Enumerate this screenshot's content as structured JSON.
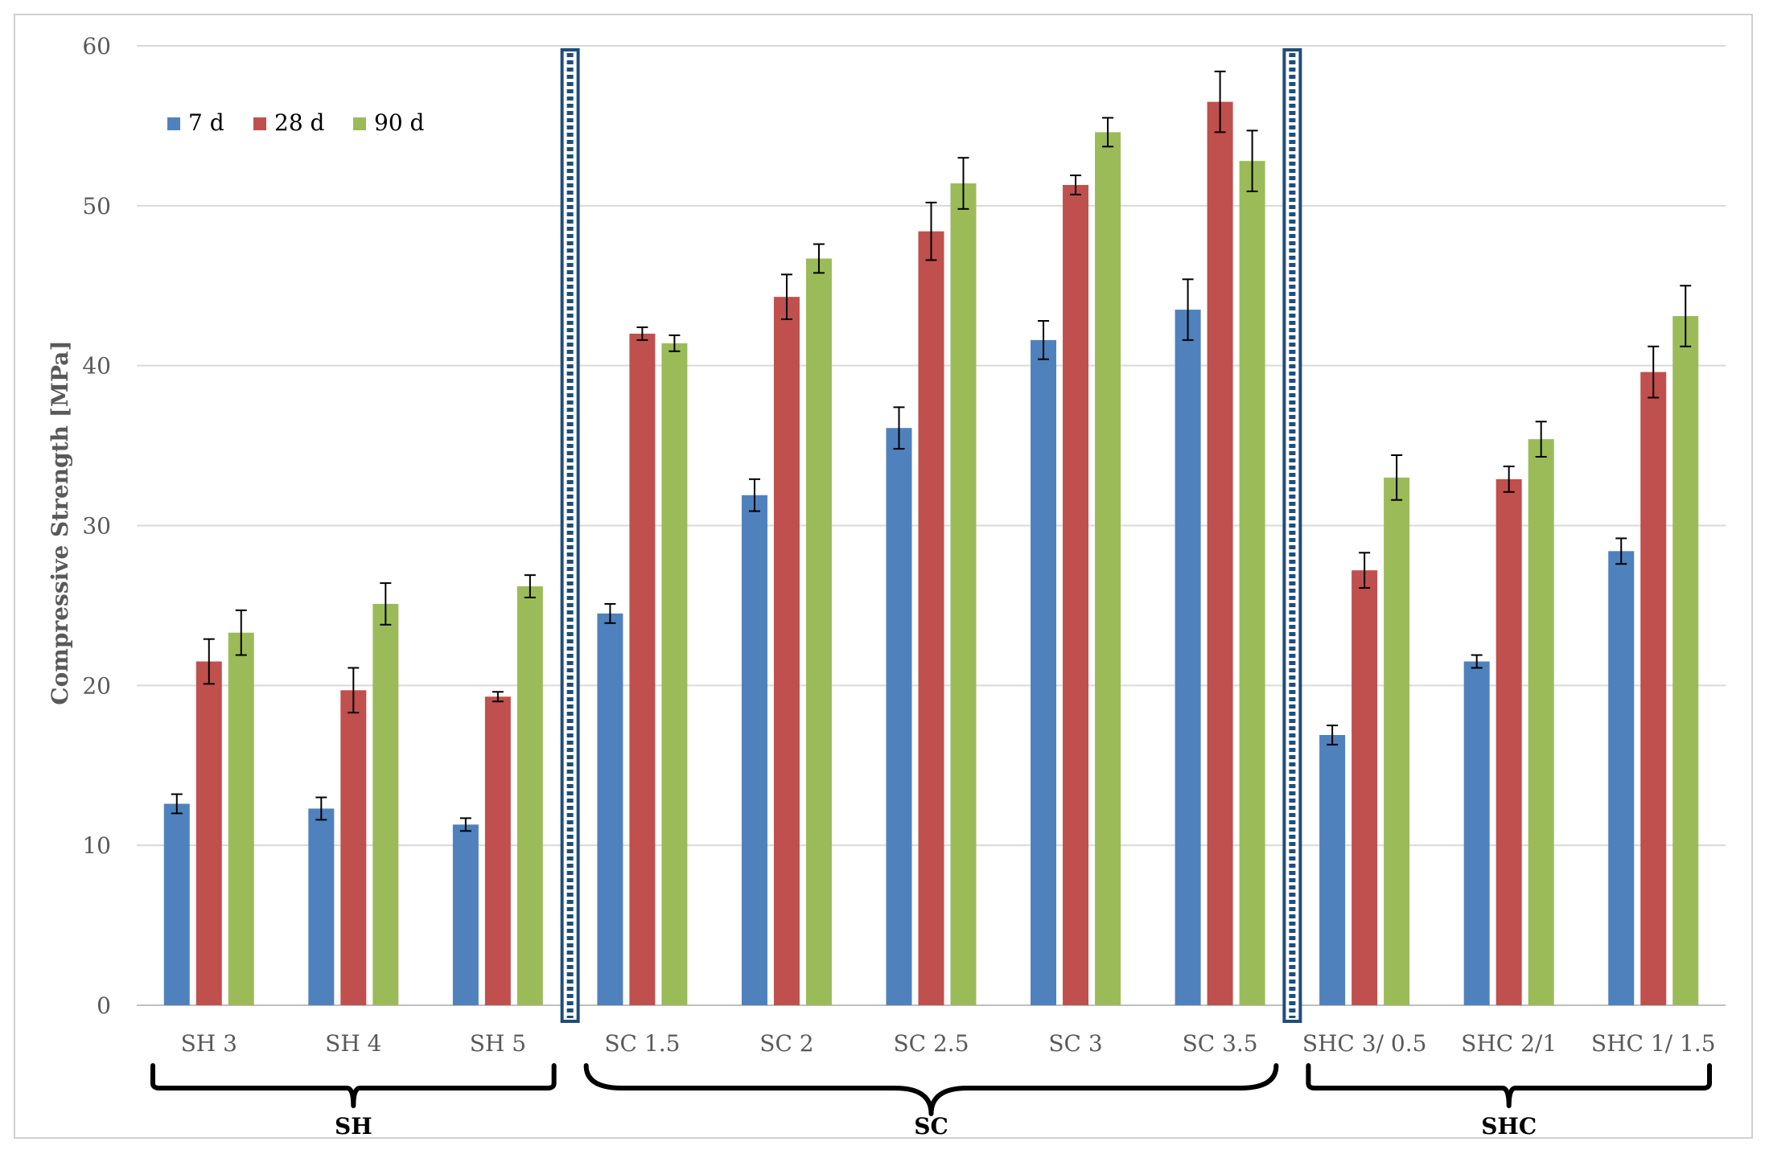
{
  "chart_data": {
    "type": "bar",
    "title": "",
    "xlabel": "",
    "ylabel": "Compressive  Strength [MPa]",
    "ylim": [
      0,
      60
    ],
    "yticks": [
      0,
      10,
      20,
      30,
      40,
      50,
      60
    ],
    "grid": true,
    "legend_position": "top-left",
    "categories": [
      "SH 3",
      "SH 4",
      "SH 5",
      "SC 1.5",
      "SC 2",
      "SC 2.5",
      "SC 3",
      "SC 3.5",
      "SHC 3/ 0.5",
      "SHC 2/1",
      "SHC 1/ 1.5"
    ],
    "series": [
      {
        "name": "7 d",
        "color": "#4f81bd",
        "values": [
          12.6,
          12.3,
          11.3,
          24.5,
          31.9,
          36.1,
          41.6,
          43.5,
          16.9,
          21.5,
          28.4
        ],
        "errors": [
          0.6,
          0.7,
          0.4,
          0.6,
          1.0,
          1.3,
          1.2,
          1.9,
          0.6,
          0.4,
          0.8
        ]
      },
      {
        "name": "28 d",
        "color": "#c0504d",
        "values": [
          21.5,
          19.7,
          19.3,
          42.0,
          44.3,
          48.4,
          51.3,
          56.5,
          27.2,
          32.9,
          39.6
        ],
        "errors": [
          1.4,
          1.4,
          0.3,
          0.4,
          1.4,
          1.8,
          0.6,
          1.9,
          1.1,
          0.8,
          1.6
        ]
      },
      {
        "name": "90 d",
        "color": "#9bbb59",
        "values": [
          23.3,
          25.1,
          26.2,
          41.4,
          46.7,
          51.4,
          54.6,
          52.8,
          33.0,
          35.4,
          43.1
        ],
        "errors": [
          1.4,
          1.3,
          0.7,
          0.5,
          0.9,
          1.6,
          0.9,
          1.9,
          1.4,
          1.1,
          1.9
        ]
      }
    ],
    "groups": [
      {
        "label": "SH",
        "first": 0,
        "last": 2
      },
      {
        "label": "SC",
        "first": 3,
        "last": 7
      },
      {
        "label": "SHC",
        "first": 8,
        "last": 10
      }
    ],
    "separators_after": [
      2,
      7
    ]
  }
}
